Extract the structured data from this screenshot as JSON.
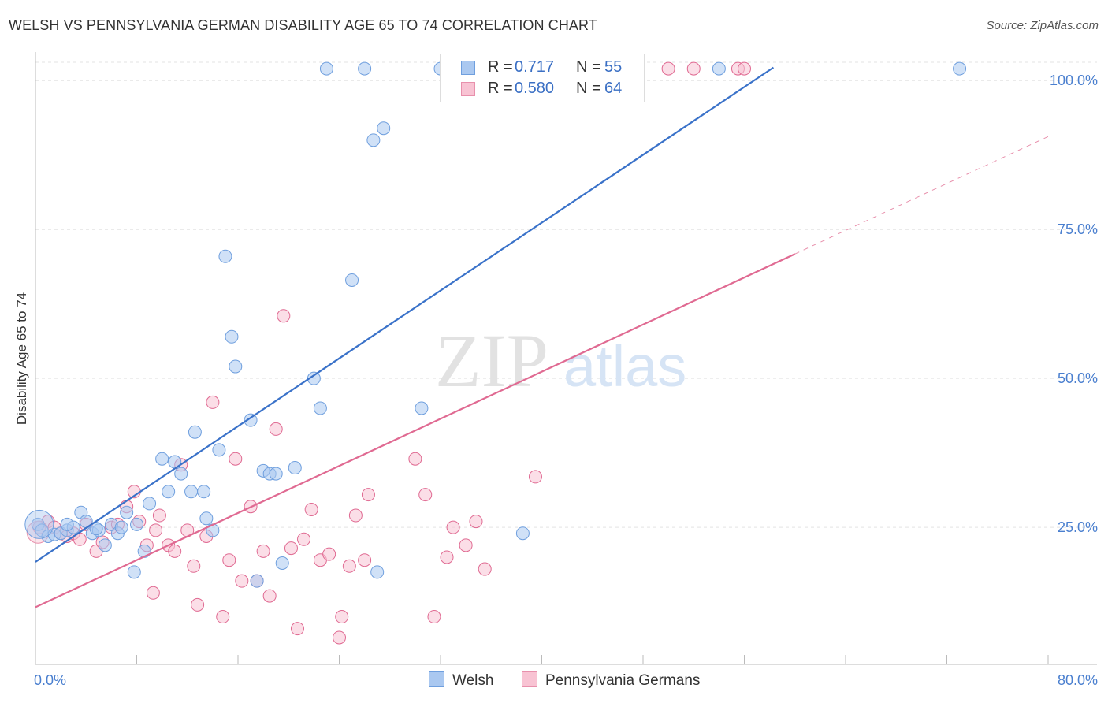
{
  "title": "WELSH VS PENNSYLVANIA GERMAN DISABILITY AGE 65 TO 74 CORRELATION CHART",
  "source": "Source: ZipAtlas.com",
  "watermark": {
    "zip": "ZIP",
    "atlas": "atlas"
  },
  "legend": {
    "rows": [
      {
        "r_label": "R =",
        "r_value": "0.717",
        "n_label": "N =",
        "n_value": "55",
        "color": "#aac8f0",
        "border": "#6f9fde"
      },
      {
        "r_label": "R =",
        "r_value": "0.580",
        "n_label": "N =",
        "n_value": "64",
        "color": "#f8c3d3",
        "border": "#e890ac"
      }
    ]
  },
  "bottom_legend": [
    {
      "label": "Welsh",
      "color": "#aac8f0",
      "border": "#6f9fde"
    },
    {
      "label": "Pennsylvania Germans",
      "color": "#f8c3d3",
      "border": "#e890ac"
    }
  ],
  "chart_data": {
    "type": "scatter",
    "title": "WELSH VS PENNSYLVANIA GERMAN DISABILITY AGE 65 TO 74 CORRELATION CHART",
    "ylabel": "Disability Age 65 to 74",
    "xlabel": "",
    "xlim": [
      0,
      80
    ],
    "ylim": [
      2,
      104
    ],
    "x_tick_labels": [
      "0.0%",
      "80.0%"
    ],
    "y_ticks": [
      25,
      50,
      75,
      100
    ],
    "y_tick_labels": [
      "25.0%",
      "50.0%",
      "75.0%",
      "100.0%"
    ],
    "grid": true,
    "legend_position": "top-center",
    "series": [
      {
        "name": "Welsh",
        "color": "#6f9fde",
        "fill": "#aac8f0",
        "trend": {
          "x": [
            0,
            58.3
          ],
          "y": [
            19.2,
            102.2
          ]
        },
        "points": [
          [
            0.2,
            25.5
          ],
          [
            0.5,
            24.5
          ],
          [
            1.0,
            23.5
          ],
          [
            1.5,
            23.8
          ],
          [
            2.0,
            24.0
          ],
          [
            2.5,
            24.5
          ],
          [
            3.0,
            25.0
          ],
          [
            3.6,
            27.5
          ],
          [
            4.0,
            26.0
          ],
          [
            4.5,
            24.0
          ],
          [
            5.0,
            24.5
          ],
          [
            5.5,
            22.0
          ],
          [
            6.0,
            25.5
          ],
          [
            6.5,
            24.0
          ],
          [
            7.2,
            27.5
          ],
          [
            7.8,
            17.5
          ],
          [
            8.6,
            21.0
          ],
          [
            9.0,
            29.0
          ],
          [
            10.0,
            36.5
          ],
          [
            10.5,
            31.0
          ],
          [
            11.0,
            36.0
          ],
          [
            11.5,
            34.0
          ],
          [
            12.6,
            41.0
          ],
          [
            12.3,
            31.0
          ],
          [
            13.5,
            26.5
          ],
          [
            13.3,
            31.0
          ],
          [
            14.0,
            24.5
          ],
          [
            14.5,
            38.0
          ],
          [
            15.0,
            70.5
          ],
          [
            15.5,
            57.0
          ],
          [
            15.8,
            52.0
          ],
          [
            17.0,
            43.0
          ],
          [
            17.5,
            16.0
          ],
          [
            18.0,
            34.5
          ],
          [
            18.5,
            34.0
          ],
          [
            19.0,
            34.0
          ],
          [
            19.5,
            19.0
          ],
          [
            20.5,
            35.0
          ],
          [
            22.0,
            50.0
          ],
          [
            22.5,
            45.0
          ],
          [
            23.0,
            102.0
          ],
          [
            25.0,
            66.5
          ],
          [
            26.0,
            102.0
          ],
          [
            27.0,
            17.5
          ],
          [
            26.7,
            90.0
          ],
          [
            27.5,
            92.0
          ],
          [
            30.5,
            45.0
          ],
          [
            32.0,
            102.0
          ],
          [
            38.5,
            24.0
          ],
          [
            54.0,
            102.0
          ],
          [
            73.0,
            102.0
          ],
          [
            2.5,
            25.5
          ],
          [
            6.8,
            25.0
          ],
          [
            8.0,
            25.5
          ],
          [
            4.8,
            24.8
          ]
        ]
      },
      {
        "name": "Pennsylvania Germans",
        "color": "#e06a92",
        "fill": "#f8c3d3",
        "trend": {
          "x": [
            0,
            60.0
          ],
          "y": [
            11.6,
            70.9
          ]
        },
        "trend_ext": {
          "x": [
            60.0,
            80.0
          ],
          "y": [
            70.9,
            90.6
          ]
        },
        "points": [
          [
            0.3,
            25.0
          ],
          [
            1.0,
            26.0
          ],
          [
            1.5,
            25.0
          ],
          [
            2.0,
            24.0
          ],
          [
            2.5,
            23.5
          ],
          [
            3.0,
            24.0
          ],
          [
            4.0,
            25.5
          ],
          [
            4.8,
            21.0
          ],
          [
            5.3,
            22.5
          ],
          [
            6.0,
            25.0
          ],
          [
            6.5,
            25.5
          ],
          [
            7.2,
            28.5
          ],
          [
            7.8,
            31.0
          ],
          [
            8.2,
            26.0
          ],
          [
            8.8,
            22.0
          ],
          [
            9.3,
            14.0
          ],
          [
            9.8,
            27.0
          ],
          [
            10.5,
            22.0
          ],
          [
            11.0,
            21.0
          ],
          [
            11.5,
            35.5
          ],
          [
            12.0,
            24.5
          ],
          [
            12.5,
            18.5
          ],
          [
            12.8,
            12.0
          ],
          [
            13.5,
            23.5
          ],
          [
            14.0,
            46.0
          ],
          [
            14.8,
            10.0
          ],
          [
            15.3,
            19.5
          ],
          [
            15.8,
            36.5
          ],
          [
            16.3,
            16.0
          ],
          [
            17.0,
            28.5
          ],
          [
            17.5,
            16.0
          ],
          [
            18.0,
            21.0
          ],
          [
            18.5,
            13.5
          ],
          [
            19.0,
            41.5
          ],
          [
            19.6,
            60.5
          ],
          [
            20.2,
            21.5
          ],
          [
            20.7,
            8.0
          ],
          [
            21.2,
            23.0
          ],
          [
            21.8,
            28.0
          ],
          [
            22.5,
            19.5
          ],
          [
            23.2,
            20.5
          ],
          [
            24.0,
            6.5
          ],
          [
            24.2,
            10.0
          ],
          [
            24.8,
            18.5
          ],
          [
            25.3,
            27.0
          ],
          [
            26.0,
            19.5
          ],
          [
            26.3,
            30.5
          ],
          [
            30.0,
            36.5
          ],
          [
            30.8,
            30.5
          ],
          [
            31.5,
            10.0
          ],
          [
            32.5,
            20.0
          ],
          [
            33.0,
            25.0
          ],
          [
            34.0,
            22.0
          ],
          [
            34.8,
            26.0
          ],
          [
            35.5,
            18.0
          ],
          [
            37.0,
            102.0
          ],
          [
            39.5,
            33.5
          ],
          [
            47.5,
            102.0
          ],
          [
            50.0,
            102.0
          ],
          [
            52.0,
            102.0
          ],
          [
            55.5,
            102.0
          ],
          [
            56.0,
            102.0
          ],
          [
            3.5,
            23.0
          ],
          [
            9.5,
            24.5
          ]
        ]
      }
    ]
  }
}
